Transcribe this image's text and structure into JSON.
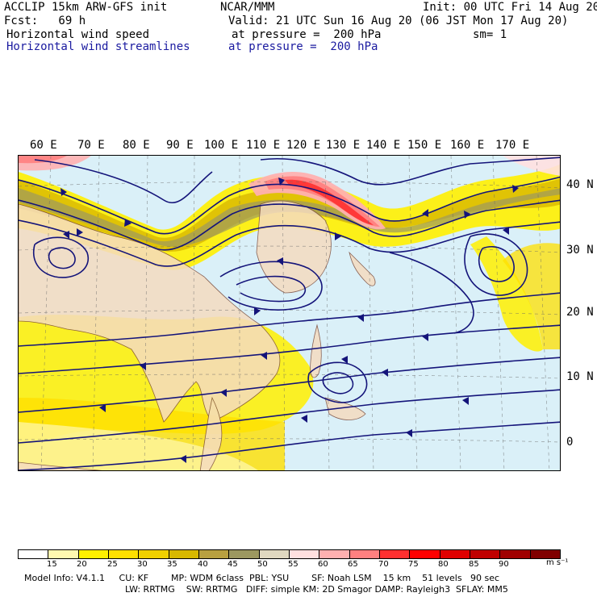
{
  "header": {
    "model": "ACCLIP 15km ARW-GFS init",
    "org": "NCAR/MMM",
    "init": "Init: 00 UTC Fri 14 Aug 20",
    "fcst": "Fcst:   69 h",
    "valid": "Valid: 21 UTC Sun 16 Aug 20 (06 JST Mon 17 Aug 20)",
    "field1": "Horizontal wind speed",
    "field1_level": "at pressure =  200 hPa",
    "sm": "sm= 1",
    "field2": "Horizontal wind streamlines",
    "field2_level": "at pressure =  200 hPa"
  },
  "lon_labels": [
    "60 E",
    "70 E",
    "80 E",
    "90 E",
    "100 E",
    "110 E",
    "120 E",
    "130 E",
    "140 E",
    "150 E",
    "160 E",
    "170 E"
  ],
  "lat_labels": [
    "40 N",
    "30 N",
    "20 N",
    "10 N",
    "0"
  ],
  "colorbar": {
    "labels": [
      "15",
      "20",
      "25",
      "30",
      "35",
      "40",
      "45",
      "50",
      "55",
      "60",
      "65",
      "70",
      "75",
      "80",
      "85",
      "90"
    ],
    "unit": "m s⁻¹",
    "colors": [
      "#ffffff",
      "#fff8b0",
      "#fff000",
      "#ffe000",
      "#f0d000",
      "#d8b800",
      "#b8a040",
      "#9c9860",
      "#e0d8c0",
      "#ffe0e0",
      "#ffb0b0",
      "#ff8080",
      "#ff3030",
      "#ff0000",
      "#e00000",
      "#c00000",
      "#a00000",
      "#800000"
    ]
  },
  "footer": {
    "line1": "Model Info: V4.1.1     CU: KF        MP: WDM 6class  PBL: YSU        SF: Noah LSM    15 km    51 levels   90 sec",
    "line2": "LW: RRTMG    SW: RRTMG   DIFF: simple KM: 2D Smagor DAMP: Rayleigh3  SFLAY: MM5"
  },
  "map": {
    "colors": {
      "ocean": "#daf0f8",
      "land": "#f5dcc0",
      "streamline": "#14147a",
      "coast": "#7a4a3a"
    }
  }
}
